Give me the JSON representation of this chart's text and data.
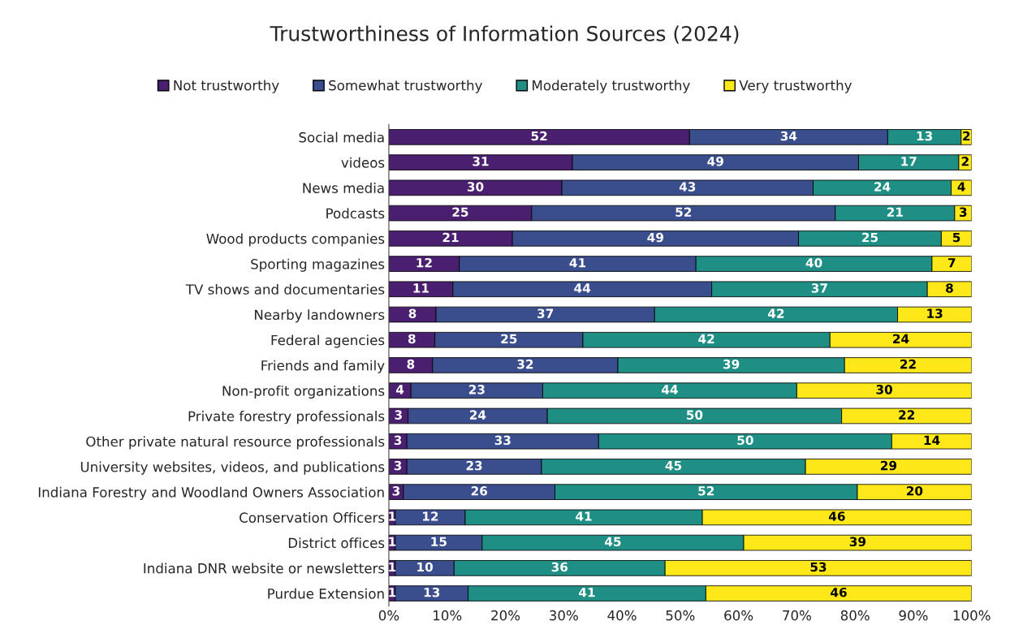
{
  "chart_data": {
    "type": "bar",
    "orientation": "horizontal",
    "stacked": true,
    "title": "Trustworthiness of Information Sources (2024)",
    "categories": [
      "Social media",
      "videos",
      "News media",
      "Podcasts",
      "Wood products companies",
      "Sporting magazines",
      "TV shows and documentaries",
      "Nearby landowners",
      "Federal agencies",
      "Friends and family",
      "Non-profit organizations",
      "Private forestry professionals",
      "Other private natural resource professionals",
      "University websites, videos, and publications",
      "Indiana Forestry and Woodland Owners Association",
      "Conservation Officers",
      "District offices",
      "Indiana DNR website or newsletters",
      "Purdue Extension"
    ],
    "series": [
      {
        "name": "Not trustworthy",
        "color": "#4b1f6f",
        "values": [
          51.6,
          31.5,
          29.7,
          24.5,
          21.2,
          12.1,
          11.0,
          8.1,
          7.9,
          7.5,
          3.8,
          3.3,
          3.1,
          3.1,
          2.5,
          1.1,
          1.1,
          1.1,
          1.1
        ],
        "value_labels": [
          "52",
          "31",
          "30",
          "25",
          "21",
          "12",
          "11",
          "8",
          "8",
          "8",
          "4",
          "3",
          "3",
          "3",
          "3",
          "1",
          "1",
          "1",
          "1"
        ]
      },
      {
        "name": "Somewhat trustworthy",
        "color": "#3a4d8c",
        "values": [
          34.0,
          49.1,
          43.1,
          52.1,
          49.1,
          40.6,
          44.4,
          37.5,
          25.4,
          31.8,
          22.6,
          23.9,
          32.9,
          23.1,
          26.0,
          12.0,
          14.9,
          10.1,
          12.5
        ],
        "value_labels": [
          "34",
          "49",
          "43",
          "52",
          "49",
          "41",
          "44",
          "37",
          "25",
          "32",
          "23",
          "24",
          "33",
          "23",
          "26",
          "12",
          "15",
          "10",
          "13"
        ]
      },
      {
        "name": "Moderately trustworthy",
        "color": "#1f8e84",
        "values": [
          12.6,
          17.2,
          23.7,
          20.5,
          24.5,
          40.5,
          37.0,
          41.7,
          42.4,
          38.9,
          43.6,
          50.5,
          50.3,
          45.3,
          51.9,
          40.7,
          44.9,
          36.2,
          40.8
        ],
        "value_labels": [
          "13",
          "17",
          "24",
          "21",
          "25",
          "40",
          "37",
          "42",
          "42",
          "39",
          "44",
          "50",
          "50",
          "45",
          "52",
          "41",
          "45",
          "36",
          "41"
        ]
      },
      {
        "name": "Very trustworthy",
        "color": "#ffe81a",
        "values": [
          1.8,
          2.2,
          3.5,
          2.9,
          5.2,
          6.8,
          7.6,
          12.7,
          24.3,
          21.8,
          30.0,
          22.3,
          13.7,
          28.5,
          19.6,
          46.2,
          39.1,
          52.6,
          45.6
        ],
        "value_labels": [
          "2",
          "2",
          "4",
          "3",
          "5",
          "7",
          "8",
          "13",
          "24",
          "22",
          "30",
          "22",
          "14",
          "29",
          "20",
          "46",
          "39",
          "53",
          "46"
        ]
      }
    ],
    "xlim": [
      0,
      100
    ],
    "xticks": [
      {
        "value": 0,
        "label": "0%"
      },
      {
        "value": 10,
        "label": "10%"
      },
      {
        "value": 20,
        "label": "20%"
      },
      {
        "value": 30,
        "label": "30%"
      },
      {
        "value": 40,
        "label": "40%"
      },
      {
        "value": 50,
        "label": "50%"
      },
      {
        "value": 60,
        "label": "60%"
      },
      {
        "value": 70,
        "label": "70%"
      },
      {
        "value": 80,
        "label": "80%"
      },
      {
        "value": 90,
        "label": "90%"
      },
      {
        "value": 100,
        "label": "100%"
      }
    ],
    "legend": "top",
    "grid": false
  }
}
